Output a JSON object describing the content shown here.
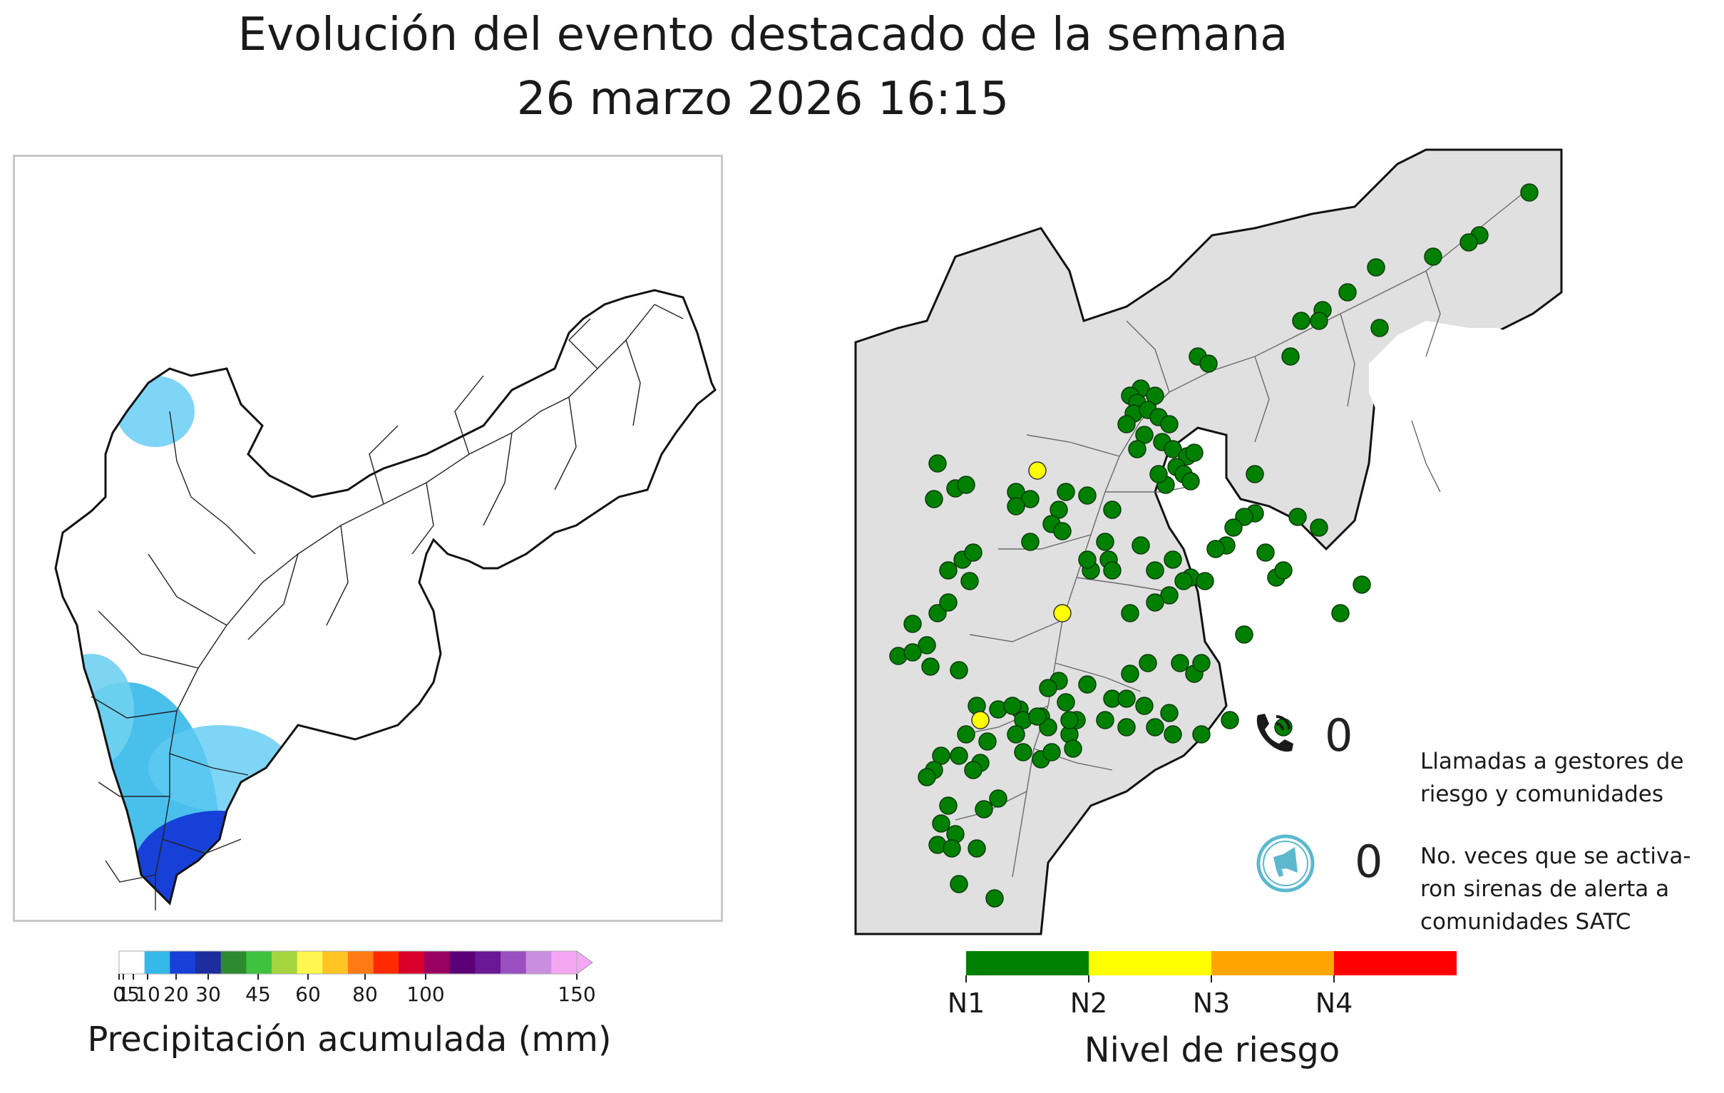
{
  "header": {
    "title_line1": "Evolución del evento destacado de la semana",
    "title_line2": "26 marzo 2026 16:15"
  },
  "precip_colorbar": {
    "label": "Precipitación acumulada (mm)",
    "ticks": [
      "0",
      "1",
      "5",
      "10",
      "20",
      "30",
      "45",
      "60",
      "80",
      "100",
      "150"
    ],
    "colors": [
      "#ffffff",
      "#35b8ea",
      "#1740d8",
      "#1d2da0",
      "#2e8a2e",
      "#3fc23f",
      "#a5d63f",
      "#fff64f",
      "#ffc423",
      "#ff7a14",
      "#ff2a00",
      "#d8002a",
      "#9a0060",
      "#5c0078",
      "#6a1895",
      "#9a50c0",
      "#c98ee0",
      "#f4a8f4"
    ]
  },
  "risk_legend": {
    "label": "Nivel de riesgo",
    "levels": [
      {
        "name": "N1",
        "color": "#008000"
      },
      {
        "name": "N2",
        "color": "#ffff00"
      },
      {
        "name": "N3",
        "color": "#ffa500"
      },
      {
        "name": "N4",
        "color": "#ff0000"
      }
    ]
  },
  "stats": {
    "calls_icon": "phone-icon",
    "calls_value": "0",
    "calls_label_line1": "Llamadas a gestores de",
    "calls_label_line2": "riesgo y comunidades",
    "sirens_icon": "siren-icon",
    "sirens_value": "0",
    "sirens_label_line1": "No. veces que se activa-",
    "sirens_label_line2": "ron sirenas de alerta a",
    "sirens_label_line3": "comunidades SATC"
  },
  "colors": {
    "station_n1": "#008000",
    "station_n2": "#ffff00",
    "basin_fill": "#e0e0e0",
    "rivers": "#555555"
  }
}
